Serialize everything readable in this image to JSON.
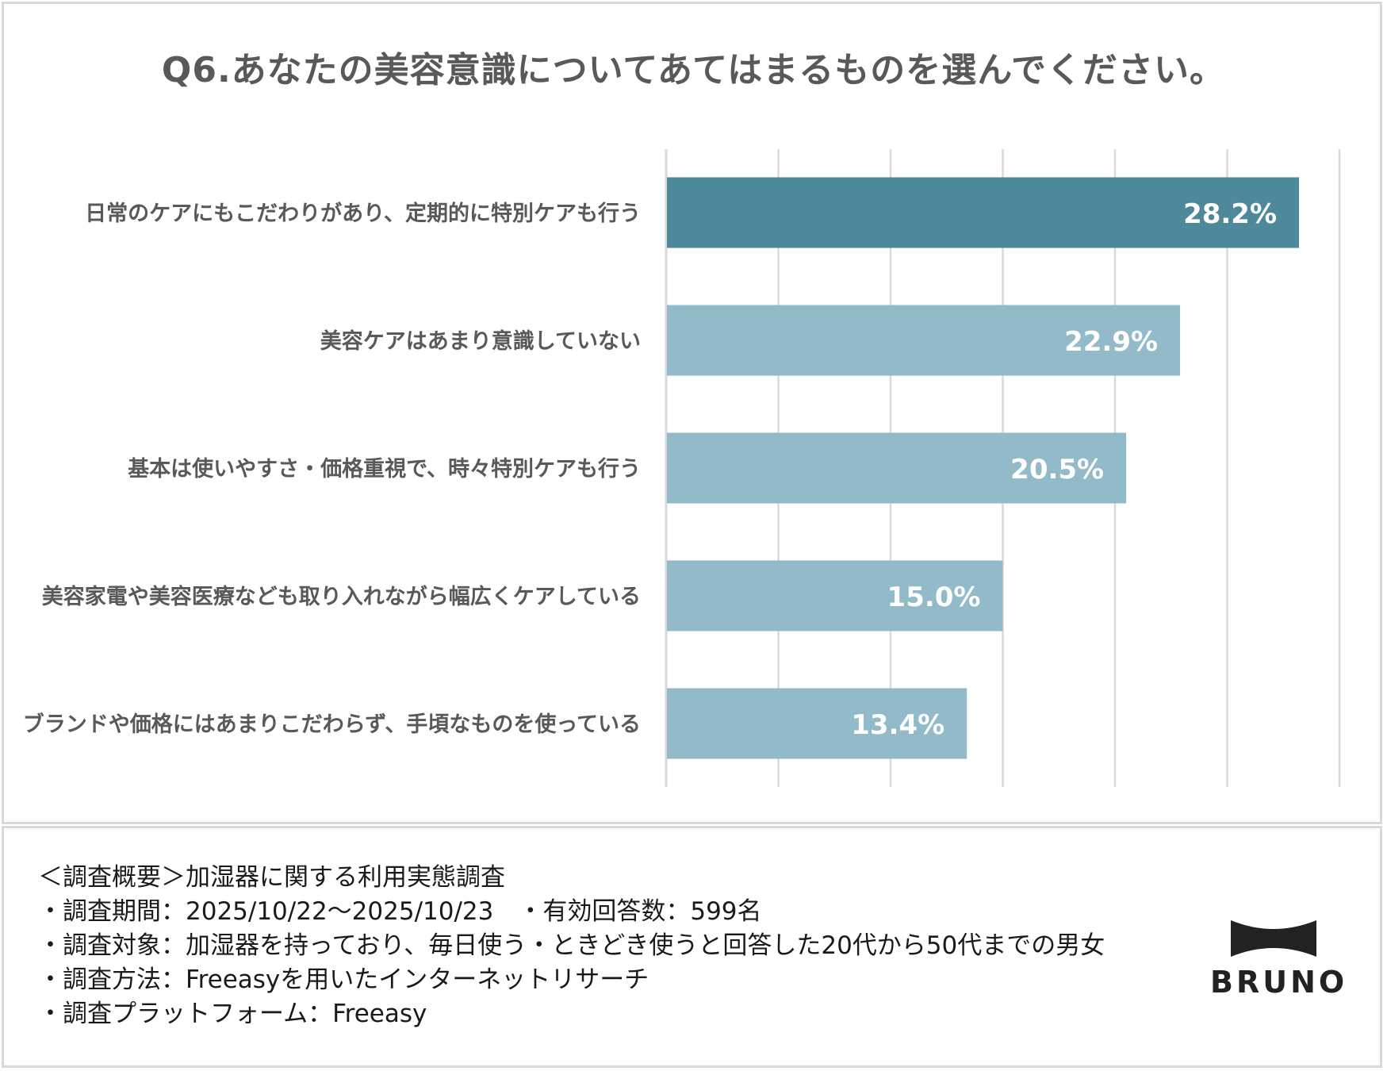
{
  "chart_data": {
    "type": "bar",
    "orientation": "horizontal",
    "title": "Q6.あなたの美容意識についてあてはまるものを選んでください。",
    "categories": [
      "日常のケアにもこだわりがあり、定期的に特別ケアも行う",
      "美容ケアはあまり意識していない",
      "基本は使いやすさ・価格重視で、時々特別ケアも行う",
      "美容家電や美容医療なども取り入れながら幅広くケアしている",
      "ブランドや価格にはあまりこだわらず、手頃なものを使っている"
    ],
    "values": [
      28.2,
      22.9,
      20.5,
      15.0,
      13.4
    ],
    "value_labels": [
      "28.2%",
      "22.9%",
      "20.5%",
      "15.0%",
      "13.4%"
    ],
    "xlim": [
      0,
      30
    ],
    "gridline_step": 5,
    "grid": true,
    "colors": {
      "highlight": "#4e889b",
      "default": "#92bac9",
      "grid": "#d9d9d9"
    }
  },
  "notes": {
    "line1": "＜調査概要＞加湿器に関する利用実態調査",
    "line2": "・調査期間：2025/10/22～2025/10/23　・有効回答数：599名",
    "line3": "・調査対象：加湿器を持っており、毎日使う・ときどき使うと回答した20代から50代までの男女",
    "line4": "・調査方法：Freeasyを用いたインターネットリサーチ",
    "line5": "・調査プラットフォーム：Freeasy"
  },
  "brand": {
    "name": "BRUNO",
    "icon": "bruno-logo-mark"
  }
}
